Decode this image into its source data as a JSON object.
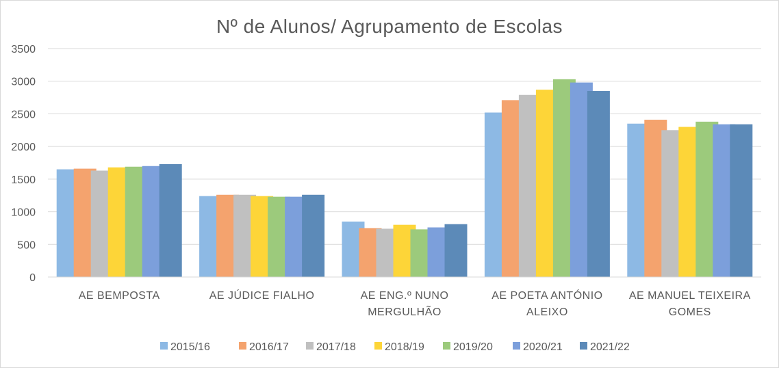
{
  "chart_data": {
    "type": "bar",
    "title": "Nº de Alunos/ Agrupamento de Escolas",
    "xlabel": "",
    "ylabel": "",
    "ylim": [
      0,
      3500
    ],
    "yticks": [
      0,
      500,
      1000,
      1500,
      2000,
      2500,
      3000,
      3500
    ],
    "grid": true,
    "legend_position": "bottom",
    "categories": [
      [
        "AE BEMPOSTA"
      ],
      [
        "AE JÚDICE FIALHO"
      ],
      [
        "AE ENG.º NUNO",
        "MERGULHÃO"
      ],
      [
        "AE POETA ANTÓNIO",
        "ALEIXO"
      ],
      [
        "AE MANUEL  TEIXEIRA",
        "GOMES"
      ]
    ],
    "series": [
      {
        "name": "2015/16",
        "color": "#8db9e4",
        "values": [
          1650,
          1240,
          850,
          2520,
          2350
        ]
      },
      {
        "name": "2016/17",
        "color": "#f4a36e",
        "values": [
          1660,
          1260,
          750,
          2710,
          2410
        ]
      },
      {
        "name": "2017/18",
        "color": "#c0c0c0",
        "values": [
          1630,
          1260,
          740,
          2790,
          2250
        ]
      },
      {
        "name": "2018/19",
        "color": "#fdd538",
        "values": [
          1680,
          1240,
          800,
          2870,
          2300
        ]
      },
      {
        "name": "2019/20",
        "color": "#9cca7c",
        "values": [
          1690,
          1230,
          730,
          3030,
          2380
        ]
      },
      {
        "name": "2020/21",
        "color": "#7c9fdb",
        "values": [
          1700,
          1230,
          760,
          2980,
          2340
        ]
      },
      {
        "name": "2021/22",
        "color": "#5c8ab8",
        "values": [
          1730,
          1260,
          810,
          2850,
          2340
        ]
      }
    ]
  }
}
